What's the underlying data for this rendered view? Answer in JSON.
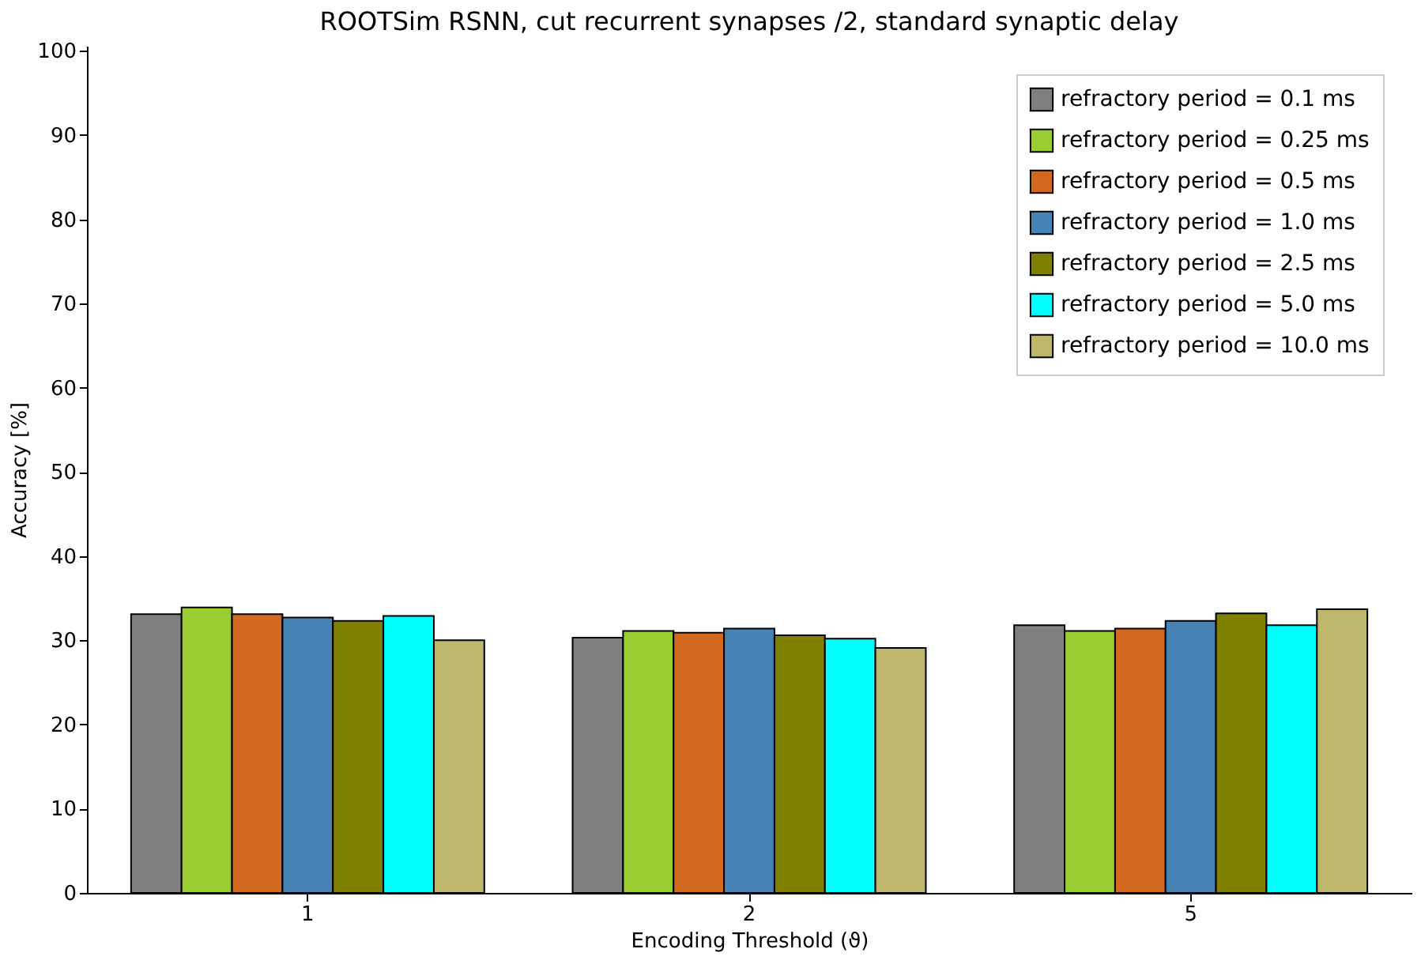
{
  "chart_data": {
    "type": "bar",
    "title": "ROOTSim RSNN, cut recurrent synapses /2, standard synaptic delay",
    "xlabel": "Encoding Threshold (ϑ)",
    "ylabel": "Accuracy [%]",
    "categories": [
      "1",
      "2",
      "5"
    ],
    "series": [
      {
        "name": "refractory period = 0.1 ms",
        "color": "#808080",
        "values": [
          33.1,
          30.3,
          31.8
        ]
      },
      {
        "name": "refractory period = 0.25 ms",
        "color": "#9acd32",
        "values": [
          33.9,
          31.1,
          31.1
        ]
      },
      {
        "name": "refractory period = 0.5 ms",
        "color": "#d2691e",
        "values": [
          33.1,
          30.9,
          31.4
        ]
      },
      {
        "name": "refractory period = 1.0 ms",
        "color": "#4682b4",
        "values": [
          32.7,
          31.4,
          32.3
        ]
      },
      {
        "name": "refractory period = 2.5 ms",
        "color": "#808000",
        "values": [
          32.3,
          30.6,
          33.2
        ]
      },
      {
        "name": "refractory period = 5.0 ms",
        "color": "#00ffff",
        "values": [
          32.9,
          30.2,
          31.8
        ]
      },
      {
        "name": "refractory period = 10.0 ms",
        "color": "#bdb76b",
        "values": [
          30.0,
          29.1,
          33.7
        ]
      }
    ],
    "ylim": [
      0,
      100.6
    ],
    "yticks": [
      0,
      10,
      20,
      30,
      40,
      50,
      60,
      70,
      80,
      90,
      100
    ],
    "grid": false,
    "legend": "top right"
  }
}
